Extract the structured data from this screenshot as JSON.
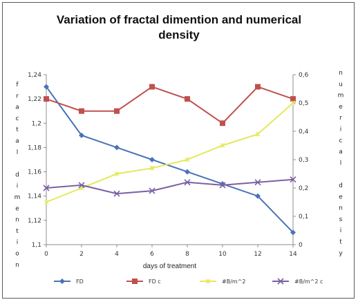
{
  "chart_data": {
    "type": "line",
    "title_lines": [
      "Variation of fractal dimention and numerical",
      "density"
    ],
    "xlabel": "days of treatment",
    "ylabel_left": "fractal dimention",
    "ylabel_right": "numerical density",
    "x": [
      0,
      2,
      4,
      6,
      8,
      10,
      12,
      14
    ],
    "ylim_left": [
      1.1,
      1.24
    ],
    "ylim_right": [
      0,
      0.6
    ],
    "yticks_left": [
      "1,1",
      "1,12",
      "1,14",
      "1,16",
      "1,18",
      "1,2",
      "1,22",
      "1,24"
    ],
    "yticks_right": [
      "0",
      "0,1",
      "0,2",
      "0,3",
      "0,4",
      "0,5",
      "0,6"
    ],
    "legend_position": "bottom",
    "grid": false,
    "series": [
      {
        "name": "FD",
        "axis": "left",
        "color": "#4a72b8",
        "marker": "diamond",
        "values": [
          1.23,
          1.19,
          1.18,
          1.17,
          1.16,
          1.15,
          1.14,
          1.11
        ]
      },
      {
        "name": "FD c",
        "axis": "left",
        "color": "#c0504d",
        "marker": "square",
        "values": [
          1.22,
          1.21,
          1.21,
          1.23,
          1.22,
          1.2,
          1.23,
          1.22
        ]
      },
      {
        "name": "#B/m^2",
        "axis": "right",
        "color": "#e4e85a",
        "marker": "star",
        "values": [
          0.15,
          0.2,
          0.25,
          0.27,
          0.3,
          0.35,
          0.39,
          0.5
        ]
      },
      {
        "name": "#B/m^2 c",
        "axis": "right",
        "color": "#7b5fa3",
        "marker": "x",
        "values": [
          0.2,
          0.21,
          0.18,
          0.19,
          0.22,
          0.21,
          0.22,
          0.23
        ]
      }
    ]
  }
}
